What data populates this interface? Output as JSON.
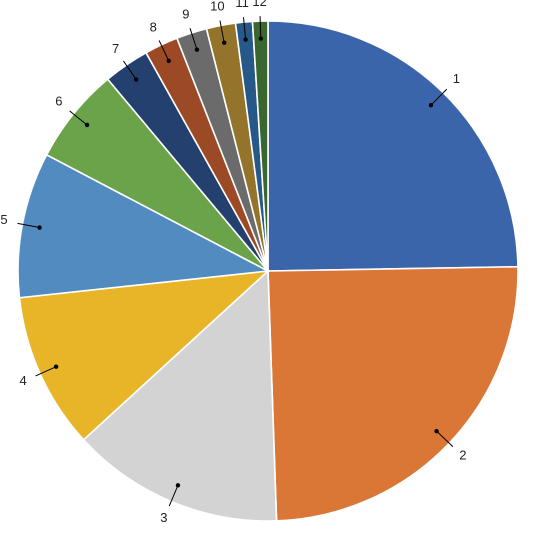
{
  "chart_data": {
    "type": "pie",
    "title": "",
    "start": "12 o'clock",
    "direction": "clockwise",
    "legend": "none",
    "categories": [
      "1",
      "2",
      "3",
      "4",
      "5",
      "6",
      "7",
      "8",
      "9",
      "10",
      "11",
      "12"
    ],
    "values": [
      25.0,
      25.0,
      13.9,
      10.2,
      9.5,
      6.3,
      3.0,
      2.2,
      2.0,
      1.9,
      1.1,
      1.0
    ],
    "colors": [
      "#3B65AA",
      "#DB7736",
      "#D3D3D3",
      "#E8B428",
      "#528BBF",
      "#6BA34A",
      "#23406E",
      "#9C4A25",
      "#6B6B6B",
      "#94742A",
      "#26598A",
      "#3A6630"
    ]
  }
}
